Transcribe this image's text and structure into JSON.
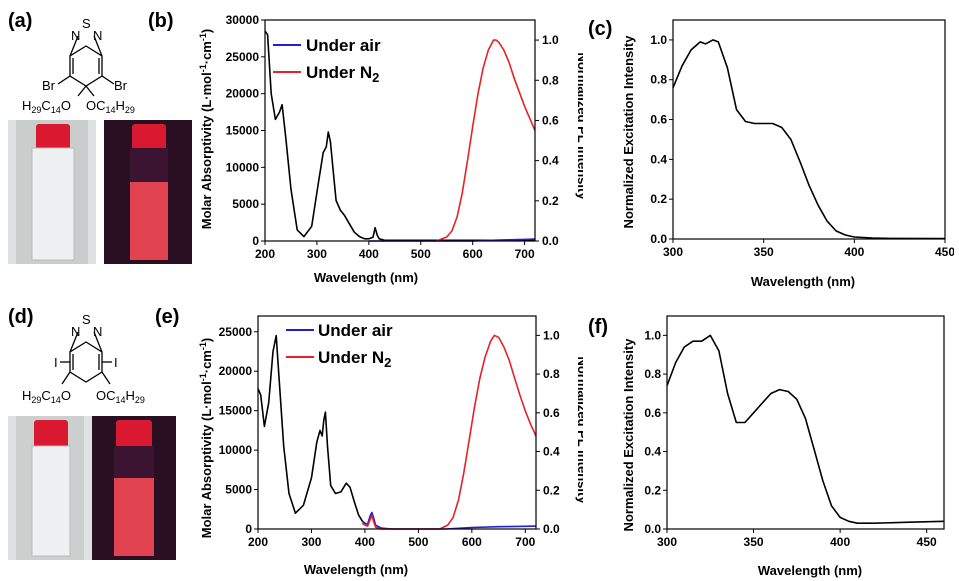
{
  "panels": {
    "a": "(a)",
    "b": "(b)",
    "c": "(c)",
    "d": "(d)",
    "e": "(e)",
    "f": "(f)"
  },
  "molecules": {
    "top": {
      "heteroatoms": [
        "N",
        "S",
        "N"
      ],
      "halogen": "Br",
      "substituent": "C14H29"
    },
    "bottom": {
      "heteroatoms": [
        "N",
        "S",
        "N"
      ],
      "halogen": "I",
      "substituent": "C14H29"
    }
  },
  "colors": {
    "air": "#1f1fd6",
    "n2": "#e8202a",
    "abs": "#000000",
    "exc": "#000000",
    "vial_cap": "#d8192f",
    "glow": "#ff4a55"
  },
  "chart_data": [
    {
      "panel": "b",
      "type": "line",
      "xlabel": "Wavelength (nm)",
      "ylabel": "Molar Absorptivity (L·mol⁻¹·cm⁻¹)",
      "y2label": "Normalized PL Intensity",
      "xlim": [
        200,
        720
      ],
      "ylim": [
        0,
        30000
      ],
      "y2lim": [
        0,
        1.1
      ],
      "xticks": [
        200,
        300,
        400,
        500,
        600,
        700
      ],
      "yticks": [
        0,
        5000,
        10000,
        15000,
        20000,
        25000,
        30000
      ],
      "y2ticks": [
        0.0,
        0.2,
        0.4,
        0.6,
        0.8,
        1.0
      ],
      "legend": [
        "Under air",
        "Under N2"
      ],
      "series": [
        {
          "role": "absorption",
          "x": [
            200,
            205,
            212,
            220,
            228,
            233,
            240,
            250,
            262,
            275,
            290,
            303,
            312,
            318,
            322,
            326,
            331,
            337,
            345,
            353,
            362,
            372,
            382,
            392,
            400,
            408,
            412,
            416,
            420,
            430,
            450,
            500,
            550,
            600,
            650,
            720
          ],
          "y": [
            28500,
            28000,
            20000,
            16500,
            17500,
            18500,
            14000,
            7000,
            1500,
            600,
            2000,
            8000,
            12000,
            12800,
            14800,
            13500,
            9800,
            5500,
            4200,
            3500,
            2400,
            1200,
            600,
            300,
            300,
            500,
            1800,
            800,
            300,
            100,
            100,
            100,
            100,
            100,
            100,
            100
          ]
        },
        {
          "name": "Under air",
          "role": "PL",
          "x": [
            400,
            500,
            550,
            600,
            650,
            700,
            720
          ],
          "y": [
            0.0,
            0.0,
            0.0,
            0.0,
            0.005,
            0.008,
            0.01
          ]
        },
        {
          "name": "Under N2",
          "role": "PL",
          "x": [
            530,
            550,
            560,
            570,
            580,
            590,
            600,
            610,
            620,
            630,
            640,
            645,
            650,
            660,
            670,
            680,
            690,
            700,
            710,
            720
          ],
          "y": [
            0.0,
            0.02,
            0.05,
            0.12,
            0.24,
            0.4,
            0.57,
            0.73,
            0.86,
            0.95,
            1.0,
            1.0,
            0.99,
            0.95,
            0.89,
            0.81,
            0.74,
            0.67,
            0.61,
            0.55
          ]
        }
      ]
    },
    {
      "panel": "c",
      "type": "line",
      "xlabel": "Wavelength (nm)",
      "ylabel": "Normalized Excitation Intensity",
      "xlim": [
        300,
        450
      ],
      "ylim": [
        0,
        1.1
      ],
      "xticks": [
        300,
        350,
        400,
        450
      ],
      "yticks": [
        0.0,
        0.2,
        0.4,
        0.6,
        0.8,
        1.0
      ],
      "series": [
        {
          "role": "excitation",
          "x": [
            300,
            305,
            310,
            315,
            318,
            322,
            325,
            330,
            335,
            340,
            345,
            350,
            355,
            360,
            365,
            370,
            375,
            380,
            385,
            390,
            395,
            400,
            410,
            420,
            450
          ],
          "y": [
            0.76,
            0.87,
            0.95,
            0.99,
            0.98,
            1.0,
            0.99,
            0.86,
            0.65,
            0.59,
            0.58,
            0.58,
            0.58,
            0.56,
            0.5,
            0.39,
            0.27,
            0.17,
            0.09,
            0.04,
            0.02,
            0.01,
            0.005,
            0.003,
            0.002
          ]
        }
      ]
    },
    {
      "panel": "e",
      "type": "line",
      "xlabel": "Wavelength (nm)",
      "ylabel": "Molar Absorptivity (L·mol⁻¹·cm⁻¹)",
      "y2label": "Normalized PL Intensity",
      "xlim": [
        200,
        720
      ],
      "ylim": [
        0,
        27000
      ],
      "y2lim": [
        0,
        1.1
      ],
      "xticks": [
        200,
        300,
        400,
        500,
        600,
        700
      ],
      "yticks": [
        0,
        5000,
        10000,
        15000,
        20000,
        25000
      ],
      "y2ticks": [
        0.0,
        0.2,
        0.4,
        0.6,
        0.8,
        1.0
      ],
      "legend": [
        "Under air",
        "Under N2"
      ],
      "series": [
        {
          "role": "absorption",
          "x": [
            200,
            205,
            212,
            220,
            228,
            234,
            240,
            248,
            258,
            270,
            285,
            300,
            310,
            316,
            320,
            323,
            326,
            330,
            336,
            345,
            355,
            365,
            372,
            380,
            388,
            395,
            400
          ],
          "y": [
            17800,
            17000,
            13000,
            16000,
            22500,
            24500,
            18500,
            10500,
            4500,
            2000,
            3000,
            6500,
            11000,
            12500,
            11800,
            13800,
            14800,
            10500,
            5500,
            4500,
            4700,
            5800,
            5300,
            3500,
            1800,
            1000,
            700
          ]
        },
        {
          "name": "Under air",
          "role": "PL",
          "x": [
            395,
            400,
            405,
            410,
            413,
            416,
            420,
            430,
            450,
            500,
            550,
            600,
            650,
            700,
            720
          ],
          "y": [
            0.04,
            0.03,
            0.025,
            0.07,
            0.085,
            0.06,
            0.02,
            0.005,
            0.0,
            0.0,
            0.0,
            0.008,
            0.012,
            0.014,
            0.015
          ]
        },
        {
          "name": "Under N2",
          "role": "PL",
          "x": [
            395,
            400,
            405,
            410,
            413,
            416,
            420,
            430,
            450,
            500,
            540,
            555,
            565,
            575,
            585,
            595,
            605,
            615,
            625,
            635,
            642,
            650,
            660,
            670,
            680,
            690,
            700,
            710,
            720
          ],
          "y": [
            0.03,
            0.02,
            0.015,
            0.05,
            0.07,
            0.04,
            0.01,
            0.0,
            0.0,
            0.0,
            0.0,
            0.02,
            0.06,
            0.15,
            0.29,
            0.46,
            0.63,
            0.78,
            0.89,
            0.97,
            1.0,
            0.99,
            0.94,
            0.87,
            0.78,
            0.69,
            0.61,
            0.54,
            0.48
          ]
        }
      ]
    },
    {
      "panel": "f",
      "type": "line",
      "xlabel": "Wavelength (nm)",
      "ylabel": "Normalized Excitation Intensity",
      "xlim": [
        300,
        460
      ],
      "ylim": [
        0,
        1.1
      ],
      "xticks": [
        300,
        350,
        400,
        450
      ],
      "yticks": [
        0.0,
        0.2,
        0.4,
        0.6,
        0.8,
        1.0
      ],
      "series": [
        {
          "role": "excitation",
          "x": [
            300,
            305,
            310,
            315,
            320,
            325,
            330,
            335,
            340,
            345,
            350,
            355,
            360,
            365,
            370,
            375,
            380,
            385,
            390,
            395,
            400,
            405,
            410,
            420,
            440,
            460
          ],
          "y": [
            0.74,
            0.86,
            0.94,
            0.97,
            0.97,
            1.0,
            0.92,
            0.7,
            0.55,
            0.55,
            0.6,
            0.65,
            0.7,
            0.72,
            0.71,
            0.67,
            0.57,
            0.41,
            0.25,
            0.12,
            0.06,
            0.04,
            0.03,
            0.03,
            0.035,
            0.04
          ]
        }
      ]
    }
  ]
}
